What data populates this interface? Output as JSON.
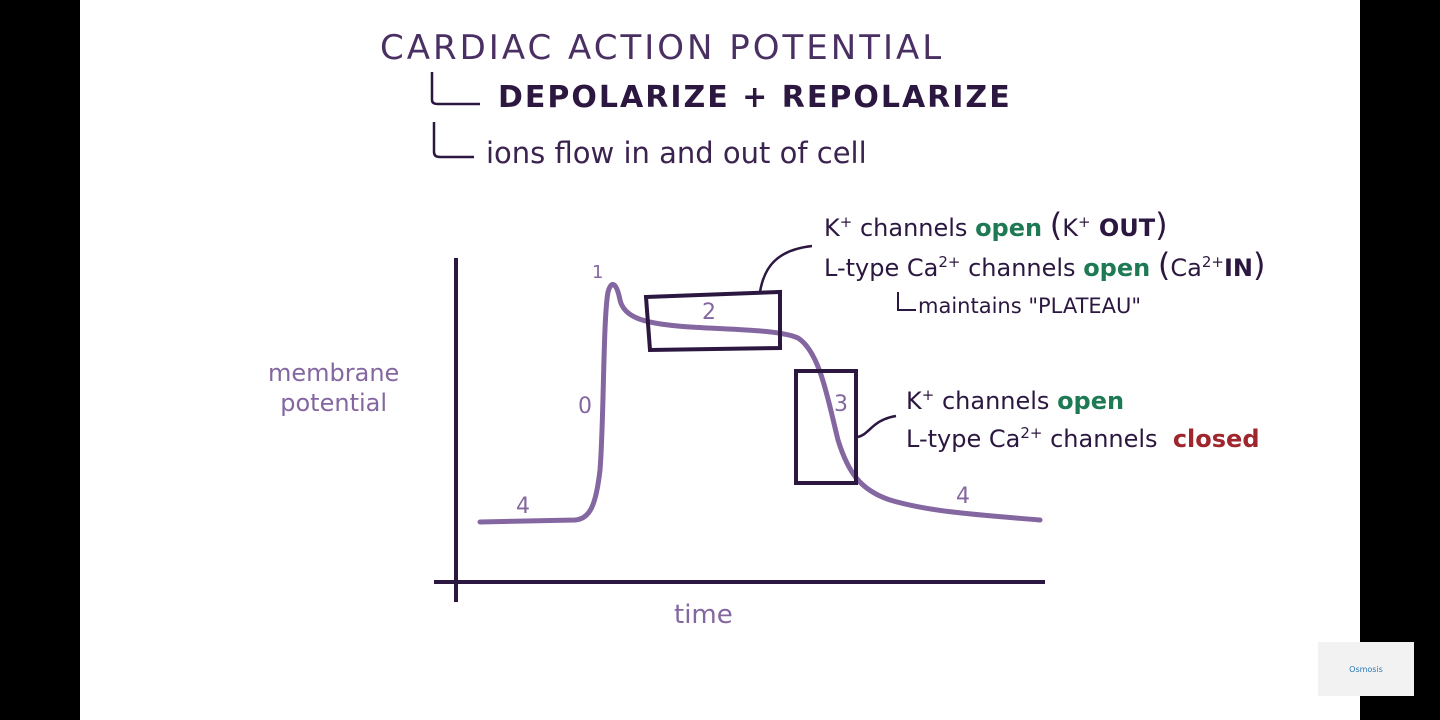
{
  "title": "CARDIAC ACTION POTENTIAL",
  "subtitle_1": "DEPOLARIZE + REPOLARIZE",
  "subtitle_2": "ions flow in and out of cell",
  "y_label_line1": "membrane",
  "y_label_line2": "potential",
  "x_label": "time",
  "phases": {
    "phase0": "0",
    "phase1": "1",
    "phase2": "2",
    "phase3": "3",
    "phase4_start": "4",
    "phase4_end": "4"
  },
  "phase2_notes": {
    "k_prefix": "K",
    "k_sup": "+",
    "k_mid": " channels ",
    "k_state": "open",
    "k_paren_open": "(",
    "k_ion": "K",
    "k_ion_sup": "+",
    "k_dir": " OUT",
    "k_paren_close": ")",
    "ca_prefix": "L-type Ca",
    "ca_sup": "2+",
    "ca_mid": " channels ",
    "ca_state": "open",
    "ca_paren_open": "(",
    "ca_ion": "Ca",
    "ca_ion_sup": "2+",
    "ca_dir": "IN",
    "ca_paren_close": ")",
    "plateau_text": "maintains \"PLATEAU\""
  },
  "phase3_notes": {
    "k_prefix": "K",
    "k_sup": "+",
    "k_mid": " channels ",
    "k_state": "open",
    "ca_prefix": "L-type Ca",
    "ca_sup": "2+",
    "ca_mid": " channels ",
    "ca_state": "closed"
  },
  "colors": {
    "curve": "#8467a0",
    "axis": "#2b1740",
    "open": "#1e7a55",
    "closed": "#a0262e"
  },
  "watermark": "Osmosis"
}
